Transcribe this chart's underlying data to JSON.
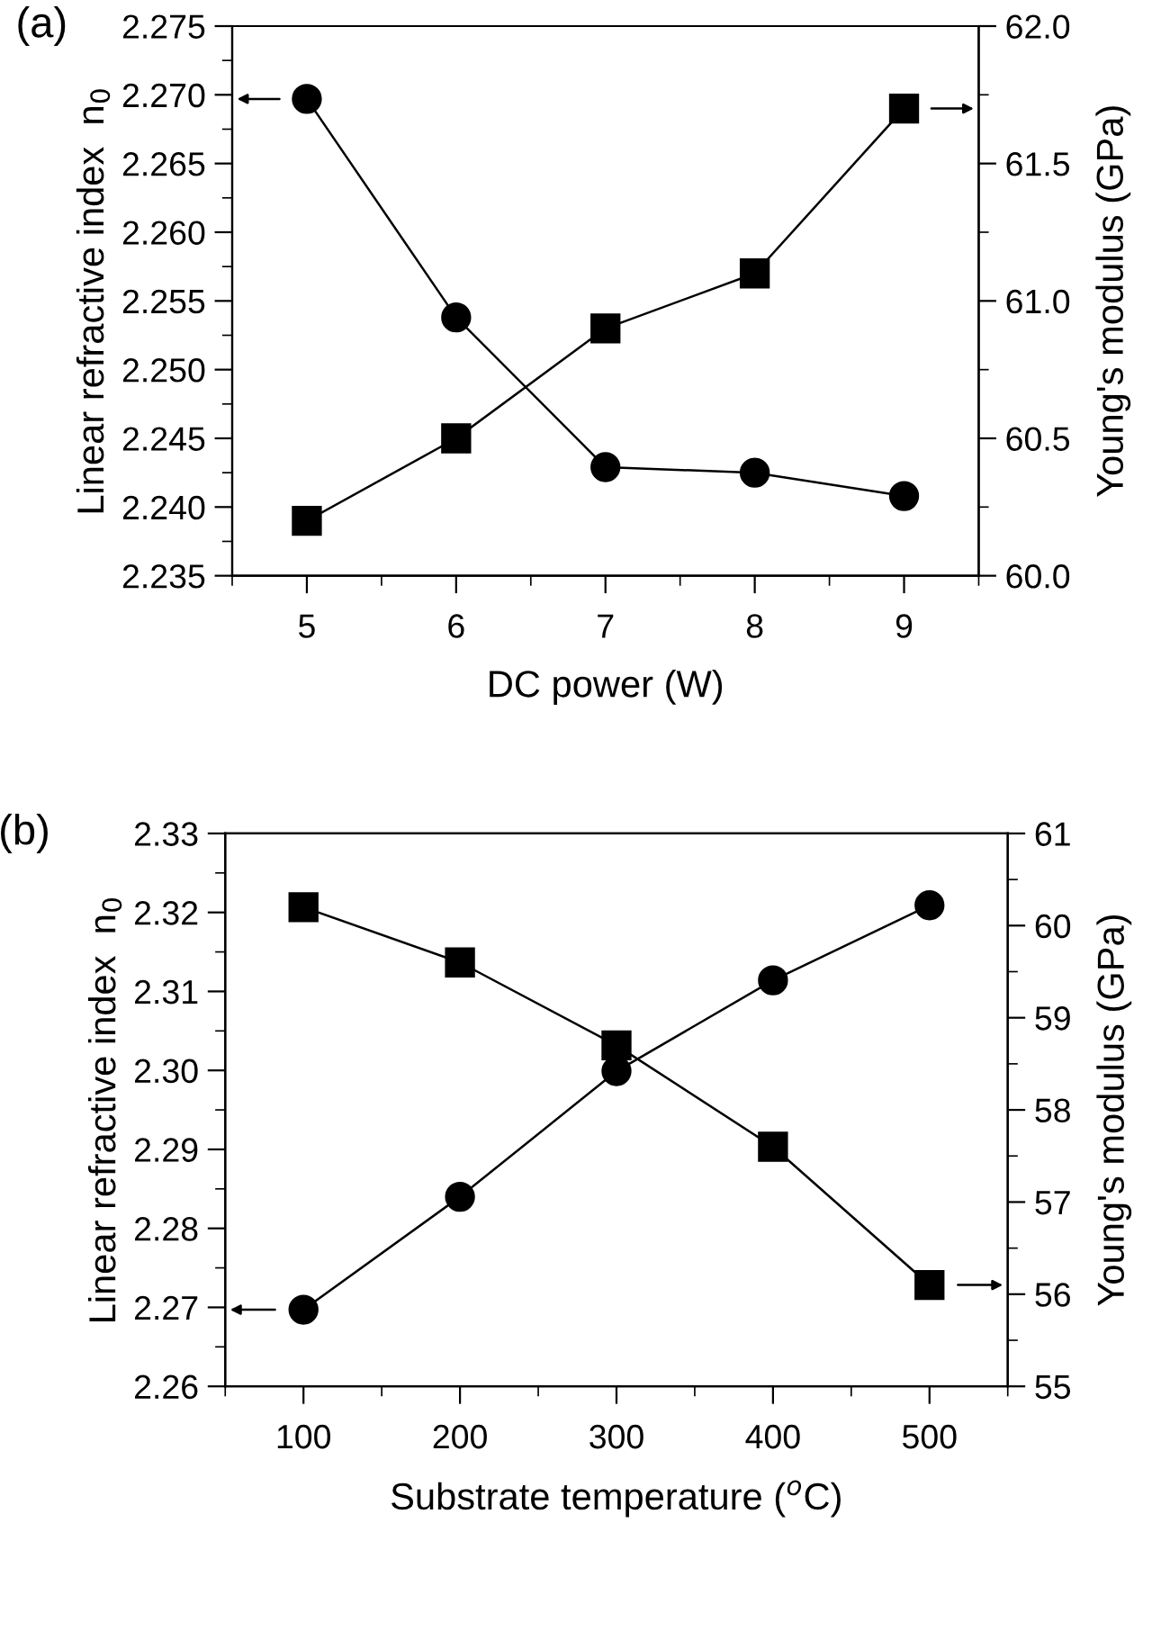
{
  "chart_data": [
    {
      "type": "line",
      "xlabel": "DC power (W)",
      "ylabel": "Linear refractive index  n$_{0}$",
      "y2label": "Young's modulus (GPa)",
      "annotations": [
        "(a)"
      ],
      "x": [
        5,
        6,
        7,
        8,
        9
      ],
      "xlim": [
        4.5,
        9.5
      ],
      "xticks": [
        {
          "value": 4.5,
          "label": null
        },
        5,
        {
          "value": 5.5,
          "label": null
        },
        6,
        {
          "value": 6.5,
          "label": null
        },
        7,
        {
          "value": 7.5,
          "label": null
        },
        8,
        {
          "value": 8.5,
          "label": null
        },
        9,
        {
          "value": 9.5,
          "label": null
        }
      ],
      "ylim": [
        2.235,
        2.275
      ],
      "yticks": [
        {
          "value": 2.235,
          "label": "2.235"
        },
        {
          "value": 2.2375,
          "label": null
        },
        {
          "value": 2.24,
          "label": "2.240"
        },
        {
          "value": 2.2425,
          "label": null
        },
        {
          "value": 2.245,
          "label": "2.245"
        },
        {
          "value": 2.2475,
          "label": null
        },
        {
          "value": 2.25,
          "label": "2.250"
        },
        {
          "value": 2.2525,
          "label": null
        },
        {
          "value": 2.255,
          "label": "2.255"
        },
        {
          "value": 2.2575,
          "label": null
        },
        {
          "value": 2.26,
          "label": "2.260"
        },
        {
          "value": 2.2625,
          "label": null
        },
        {
          "value": 2.265,
          "label": "2.265"
        },
        {
          "value": 2.2675,
          "label": null
        },
        {
          "value": 2.27,
          "label": "2.270"
        },
        {
          "value": 2.2725,
          "label": null
        },
        {
          "value": 2.275,
          "label": "2.275"
        }
      ],
      "y2lim": [
        60.0,
        62.0
      ],
      "y2ticks": [
        {
          "value": 60.0,
          "label": "60.0"
        },
        {
          "value": 60.25,
          "label": null
        },
        {
          "value": 60.5,
          "label": "60.5"
        },
        {
          "value": 60.75,
          "label": null
        },
        {
          "value": 61.0,
          "label": "61.0"
        },
        {
          "value": 61.25,
          "label": null
        },
        {
          "value": 61.5,
          "label": "61.5"
        },
        {
          "value": 61.75,
          "label": null
        },
        {
          "value": 62.0,
          "label": "62.0"
        }
      ],
      "series": [
        {
          "color": "#000000",
          "marker": "circle",
          "values": [
            2.2697,
            2.2538,
            2.2429,
            2.2425,
            2.2408
          ]
        },
        {
          "color": "#000000",
          "marker": "square",
          "axis": "y2",
          "values": [
            60.2,
            60.5,
            60.9,
            61.1,
            61.7
          ]
        }
      ]
    },
    {
      "type": "line",
      "xlabel": "Substrate temperature ($^{o}$C)",
      "ylabel": "Linear refractive index  n$_{0}$",
      "y2label": "Young's modulus (GPa)",
      "annotations": [
        "(b)"
      ],
      "x": [
        100,
        200,
        300,
        400,
        500
      ],
      "xlim": [
        50,
        550
      ],
      "xticks": [
        {
          "value": 50,
          "label": null
        },
        100,
        {
          "value": 150,
          "label": null
        },
        200,
        {
          "value": 250,
          "label": null
        },
        300,
        {
          "value": 350,
          "label": null
        },
        400,
        {
          "value": 450,
          "label": null
        },
        500,
        {
          "value": 550,
          "label": null
        }
      ],
      "ylim": [
        2.26,
        2.33
      ],
      "yticks": [
        {
          "value": 2.26,
          "label": "2.26"
        },
        {
          "value": 2.265,
          "label": null
        },
        {
          "value": 2.27,
          "label": "2.27"
        },
        {
          "value": 2.275,
          "label": null
        },
        {
          "value": 2.28,
          "label": "2.28"
        },
        {
          "value": 2.285,
          "label": null
        },
        {
          "value": 2.29,
          "label": "2.29"
        },
        {
          "value": 2.295,
          "label": null
        },
        {
          "value": 2.3,
          "label": "2.30"
        },
        {
          "value": 2.305,
          "label": null
        },
        {
          "value": 2.31,
          "label": "2.31"
        },
        {
          "value": 2.315,
          "label": null
        },
        {
          "value": 2.32,
          "label": "2.32"
        },
        {
          "value": 2.325,
          "label": null
        },
        {
          "value": 2.33,
          "label": "2.33"
        }
      ],
      "y2lim": [
        55,
        61
      ],
      "y2ticks": [
        55,
        {
          "value": 55.5,
          "label": null
        },
        56,
        {
          "value": 56.5,
          "label": null
        },
        57,
        {
          "value": 57.5,
          "label": null
        },
        58,
        {
          "value": 58.5,
          "label": null
        },
        59,
        {
          "value": 59.5,
          "label": null
        },
        60,
        {
          "value": 60.5,
          "label": null
        },
        61
      ],
      "series": [
        {
          "color": "#000000",
          "marker": "circle",
          "values": [
            2.2697,
            2.284,
            2.2999,
            2.3114,
            2.3209
          ]
        },
        {
          "color": "#000000",
          "marker": "square",
          "axis": "y2",
          "values": [
            60.2,
            59.6,
            58.7,
            57.6,
            56.1
          ]
        }
      ]
    }
  ]
}
